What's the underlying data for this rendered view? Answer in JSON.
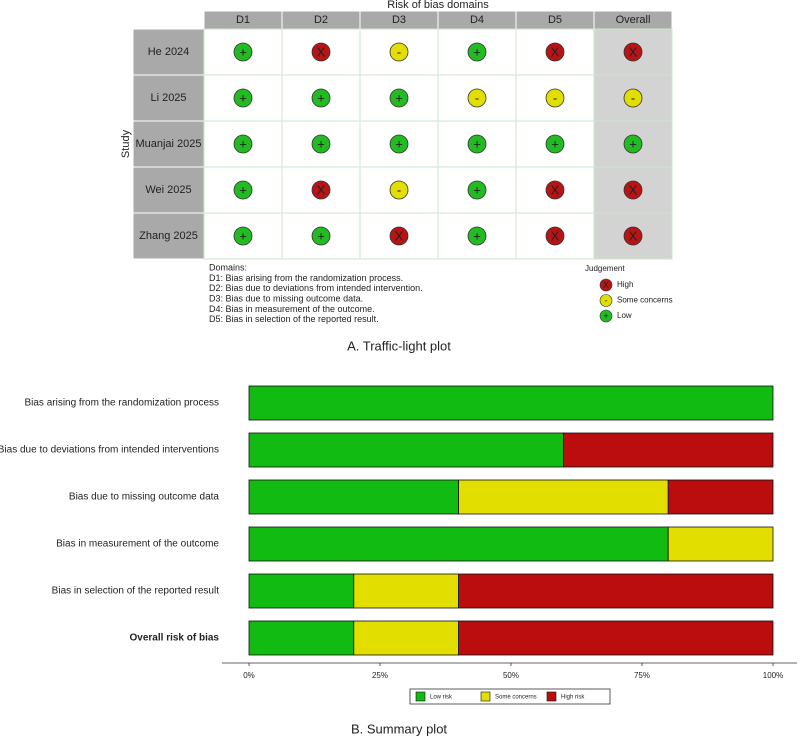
{
  "traffic_light": {
    "title": "Risk of bias domains",
    "y_label": "Study",
    "domains": [
      "D1",
      "D2",
      "D3",
      "D4",
      "D5",
      "Overall"
    ],
    "studies": [
      {
        "name": "He 2024",
        "judgements": [
          "+",
          "X",
          "-",
          "+",
          "X",
          "X"
        ]
      },
      {
        "name": "Li 2025",
        "judgements": [
          "+",
          "+",
          "+",
          "-",
          "-",
          "-"
        ]
      },
      {
        "name": "Muanjai 2025",
        "judgements": [
          "+",
          "+",
          "+",
          "+",
          "+",
          "+"
        ]
      },
      {
        "name": "Wei 2025",
        "judgements": [
          "+",
          "X",
          "-",
          "+",
          "X",
          "X"
        ]
      },
      {
        "name": "Zhang 2025",
        "judgements": [
          "+",
          "+",
          "X",
          "+",
          "X",
          "X"
        ]
      }
    ],
    "domains_title": "Domains:",
    "domain_notes": [
      "D1: Bias arising from the randomization process.",
      "D2: Bias due to deviations from intended intervention.",
      "D3: Bias due to missing outcome data.",
      "D4: Bias in measurement of the outcome.",
      "D5: Bias in selection of the reported result."
    ],
    "judgement_title": "Judgement",
    "judgements": [
      {
        "symbol": "X",
        "label": "High",
        "color": "#b81414"
      },
      {
        "symbol": "-",
        "label": "Some concerns",
        "color": "#e2df00"
      },
      {
        "symbol": "+",
        "label": "Low",
        "color": "#22bb22"
      }
    ],
    "caption": "A. Traffic-light plot"
  },
  "chart_data": {
    "type": "bar",
    "orientation": "horizontal",
    "stacked": true,
    "categories": [
      "Bias arising from the randomization process",
      "Bias due to deviations from intended interventions",
      "Bias due to missing outcome data",
      "Bias in measurement of the outcome",
      "Bias in selection of the reported result",
      "Overall risk of bias"
    ],
    "series": [
      {
        "name": "Low risk",
        "color": "#11bb11",
        "values": [
          100,
          60,
          40,
          80,
          20,
          20
        ]
      },
      {
        "name": "Some concerns",
        "color": "#e2df00",
        "values": [
          0,
          0,
          40,
          20,
          20,
          20
        ]
      },
      {
        "name": "High risk",
        "color": "#bb0d0d",
        "values": [
          0,
          40,
          20,
          0,
          60,
          60
        ]
      }
    ],
    "xlim": [
      0,
      100
    ],
    "xticks": [
      {
        "value": 0,
        "label": "0%"
      },
      {
        "value": 25,
        "label": "25%"
      },
      {
        "value": 50,
        "label": "50%"
      },
      {
        "value": 75,
        "label": "75%"
      },
      {
        "value": 100,
        "label": "100%"
      }
    ],
    "grid": false,
    "legend": "bottom",
    "caption": "B. Summary plot"
  }
}
